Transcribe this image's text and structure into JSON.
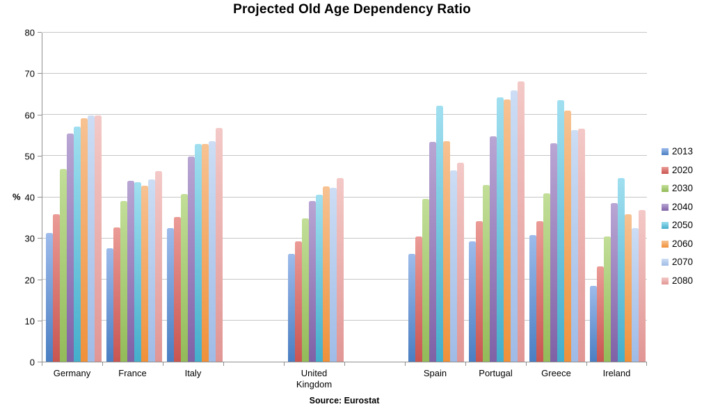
{
  "chart_data": {
    "type": "bar",
    "title": "Projected Old Age Dependency Ratio",
    "ylabel": "%",
    "source": "Source: Eurostat",
    "ylim": [
      0,
      80
    ],
    "ytick_step": 10,
    "grid": true,
    "legend_position": "right",
    "categories": [
      "Germany",
      "France",
      "Italy",
      "United Kingdom",
      "Spain",
      "Portugal",
      "Greece",
      "Ireland"
    ],
    "slot_layout": [
      "Germany",
      "France",
      "Italy",
      "",
      "United Kingdom",
      "",
      "Spain",
      "Portugal",
      "Greece",
      "Ireland"
    ],
    "series": [
      {
        "name": "2013",
        "color_top": "#9DBBEB",
        "color_bottom": "#4A7EC2",
        "values": [
          31.3,
          27.5,
          32.5,
          26.3,
          26.3,
          29.3,
          30.8,
          18.5
        ]
      },
      {
        "name": "2020",
        "color_top": "#EB9B96",
        "color_bottom": "#C95551",
        "values": [
          35.8,
          32.7,
          35.1,
          29.3,
          30.4,
          34.2,
          34.2,
          23.2
        ]
      },
      {
        "name": "2030",
        "color_top": "#C2DE98",
        "color_bottom": "#93BB59",
        "values": [
          46.8,
          39.0,
          40.8,
          34.9,
          39.5,
          43.0,
          41.0,
          30.4
        ]
      },
      {
        "name": "2040",
        "color_top": "#B9A6D4",
        "color_bottom": "#7F61A6",
        "values": [
          55.5,
          44.0,
          49.9,
          39.0,
          53.5,
          54.8,
          53.1,
          38.5
        ]
      },
      {
        "name": "2050",
        "color_top": "#A0DFF0",
        "color_bottom": "#44AECB",
        "values": [
          57.2,
          43.7,
          52.9,
          40.6,
          62.3,
          64.2,
          63.6,
          44.7
        ]
      },
      {
        "name": "2060",
        "color_top": "#F7C292",
        "color_bottom": "#F0913A",
        "values": [
          59.2,
          42.8,
          53.0,
          42.7,
          53.6,
          63.7,
          61.0,
          35.9
        ]
      },
      {
        "name": "2070",
        "color_top": "#CCDDF4",
        "color_bottom": "#9FBBE6",
        "values": [
          59.9,
          44.3,
          53.6,
          42.3,
          46.5,
          65.9,
          56.3,
          32.4
        ]
      },
      {
        "name": "2080",
        "color_top": "#F3C9C7",
        "color_bottom": "#E19694",
        "values": [
          59.8,
          46.4,
          56.9,
          44.7,
          48.3,
          68.2,
          56.7,
          36.8
        ]
      }
    ],
    "colors": {
      "gridline": "#c6c6c6",
      "axis": "#8e8e8e",
      "text": "#000000"
    }
  }
}
